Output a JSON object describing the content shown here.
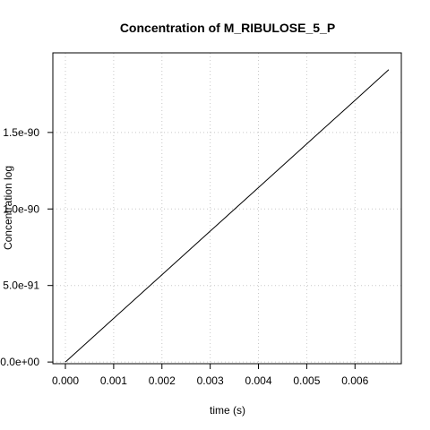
{
  "chart_data": {
    "type": "line",
    "title": "Concentration of M_RIBULOSE_5_P",
    "xlabel": "time (s)",
    "ylabel": "Concentration log",
    "xlim": [
      -0.00026,
      0.00696
    ],
    "ylim": [
      -1.1e-92,
      2.02e-90
    ],
    "x_ticks": [
      0.0,
      0.001,
      0.002,
      0.003,
      0.004,
      0.005,
      0.006
    ],
    "x_tick_labels": [
      "0.000",
      "0.001",
      "0.002",
      "0.003",
      "0.004",
      "0.005",
      "0.006"
    ],
    "y_ticks": [
      0,
      5e-91,
      1e-90,
      1.5e-90
    ],
    "y_tick_labels": [
      "0.0e+00",
      "5.0e-91",
      "1.0e-90",
      "1.5e-90"
    ],
    "grid": true,
    "series": [
      {
        "x": [
          0.0,
          0.001,
          0.002,
          0.003,
          0.004,
          0.005,
          0.006,
          0.0067
        ],
        "y": [
          0,
          2.85e-91,
          5.7e-91,
          8.55e-91,
          1.14e-90,
          1.425e-90,
          1.71e-90,
          1.91e-90
        ],
        "color": "#000000"
      }
    ]
  }
}
